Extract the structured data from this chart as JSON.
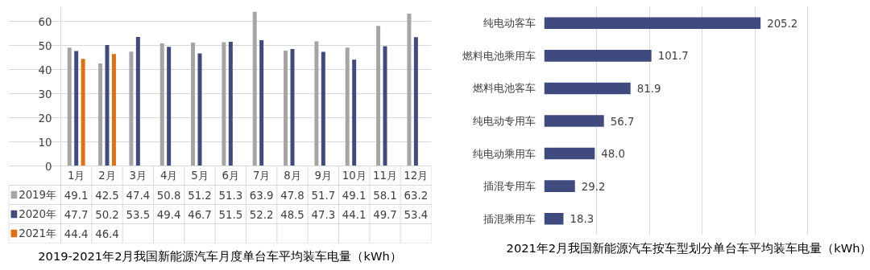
{
  "chart_data": [
    {
      "type": "bar",
      "title": "2019-2021年2月我国新能源汽车月度单台车平均装车电量（kWh）",
      "categories": [
        "1月",
        "2月",
        "3月",
        "4月",
        "5月",
        "6月",
        "7月",
        "8月",
        "9月",
        "10月",
        "11月",
        "12月"
      ],
      "series": [
        {
          "name": "2019年",
          "color": "#a5a5a5",
          "values": [
            49.1,
            42.5,
            47.4,
            50.8,
            51.2,
            51.3,
            63.9,
            47.8,
            51.7,
            49.1,
            58.1,
            63.2
          ]
        },
        {
          "name": "2020年",
          "color": "#3f4a7f",
          "values": [
            47.7,
            50.2,
            53.5,
            49.4,
            46.7,
            51.5,
            52.2,
            48.5,
            47.3,
            44.1,
            49.7,
            53.4
          ]
        },
        {
          "name": "2021年",
          "color": "#e2700f",
          "values": [
            44.4,
            46.4,
            null,
            null,
            null,
            null,
            null,
            null,
            null,
            null,
            null,
            null
          ]
        }
      ],
      "ylim": [
        0,
        66
      ],
      "yticks": [
        0,
        10,
        20,
        30,
        40,
        50,
        60
      ],
      "grid": "y",
      "legend": "bottom",
      "data_labels": true
    },
    {
      "type": "bar",
      "orientation": "horizontal",
      "title": "2021年2月我国新能源汽车按车型划分单台车平均装车电量（kWh）",
      "categories": [
        "纯电动客车",
        "燃料电池乘用车",
        "燃料电池客车",
        "纯电动专用车",
        "纯电动乘用车",
        "插混专用车",
        "插混乘用车"
      ],
      "values": [
        205.2,
        101.7,
        81.9,
        56.7,
        48.0,
        29.2,
        18.3
      ],
      "value_labels": [
        "205.2",
        "101.7",
        "81.9",
        "56.7",
        "48.0",
        "29.2",
        "18.3"
      ],
      "color": "#3f4a7f",
      "grid": "x",
      "tick_labels": "y"
    }
  ]
}
